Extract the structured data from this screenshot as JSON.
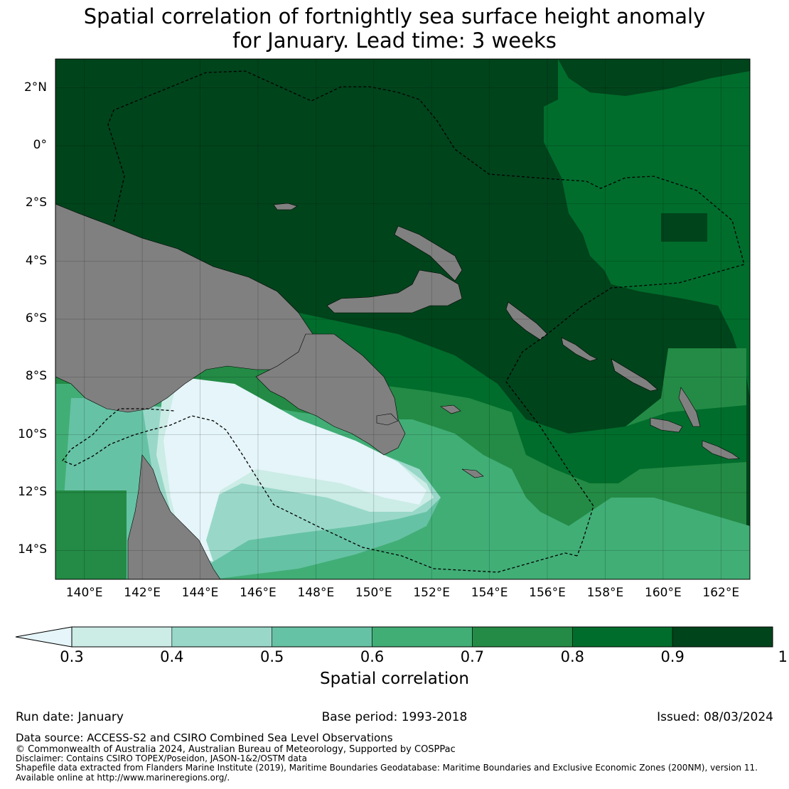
{
  "title": {
    "line1": "Spatial correlation of fortnightly sea surface height anomaly",
    "line2": "for January. Lead time: 3 weeks"
  },
  "map": {
    "lon_range": [
      139,
      163
    ],
    "lat_range": [
      -15,
      3
    ],
    "lat_labels": [
      "2°N",
      "0°",
      "2°S",
      "4°S",
      "6°S",
      "8°S",
      "10°S",
      "12°S",
      "14°S"
    ],
    "lat_values": [
      2,
      0,
      -2,
      -4,
      -6,
      -8,
      -10,
      -12,
      -14
    ],
    "lon_labels": [
      "140°E",
      "142°E",
      "144°E",
      "146°E",
      "148°E",
      "150°E",
      "152°E",
      "154°E",
      "156°E",
      "158°E",
      "160°E",
      "162°E"
    ],
    "lon_values": [
      140,
      142,
      144,
      146,
      148,
      150,
      152,
      154,
      156,
      158,
      160,
      162
    ],
    "land_color": "#808080",
    "gridlines": true
  },
  "colorbar": {
    "label": "Spatial correlation",
    "ticks": [
      "0.3",
      "0.4",
      "0.5",
      "0.6",
      "0.7",
      "0.8",
      "0.9",
      "1"
    ],
    "colors": [
      "#e5f5f9",
      "#ccece6",
      "#99d8c9",
      "#66c2a4",
      "#41ae76",
      "#238b45",
      "#006d2c",
      "#00441b"
    ],
    "extend": "min"
  },
  "footer": {
    "run_date": "Run date: January",
    "base_period": "Base period: 1993-2018",
    "issued": "Issued: 08/03/2024",
    "data_source": "Data source: ACCESS-S2 and CSIRO Combined Sea Level Observations",
    "copyright": "© Commonwealth of Australia 2024, Australian Bureau of Meteorology, Supported by COSPPac",
    "disclaimer": "Disclaimer: Contains CSIRO TOPEX/Poseidon, JASON-1&2/OSTM data",
    "shapefile": "Shapefile data extracted from Flanders Marine Institute (2019), Maritime Boundaries Geodatabase: Maritime Boundaries and Exclusive Economic Zones (200NM), version 11.",
    "available": "Available online at http://www.marineregions.org/."
  }
}
